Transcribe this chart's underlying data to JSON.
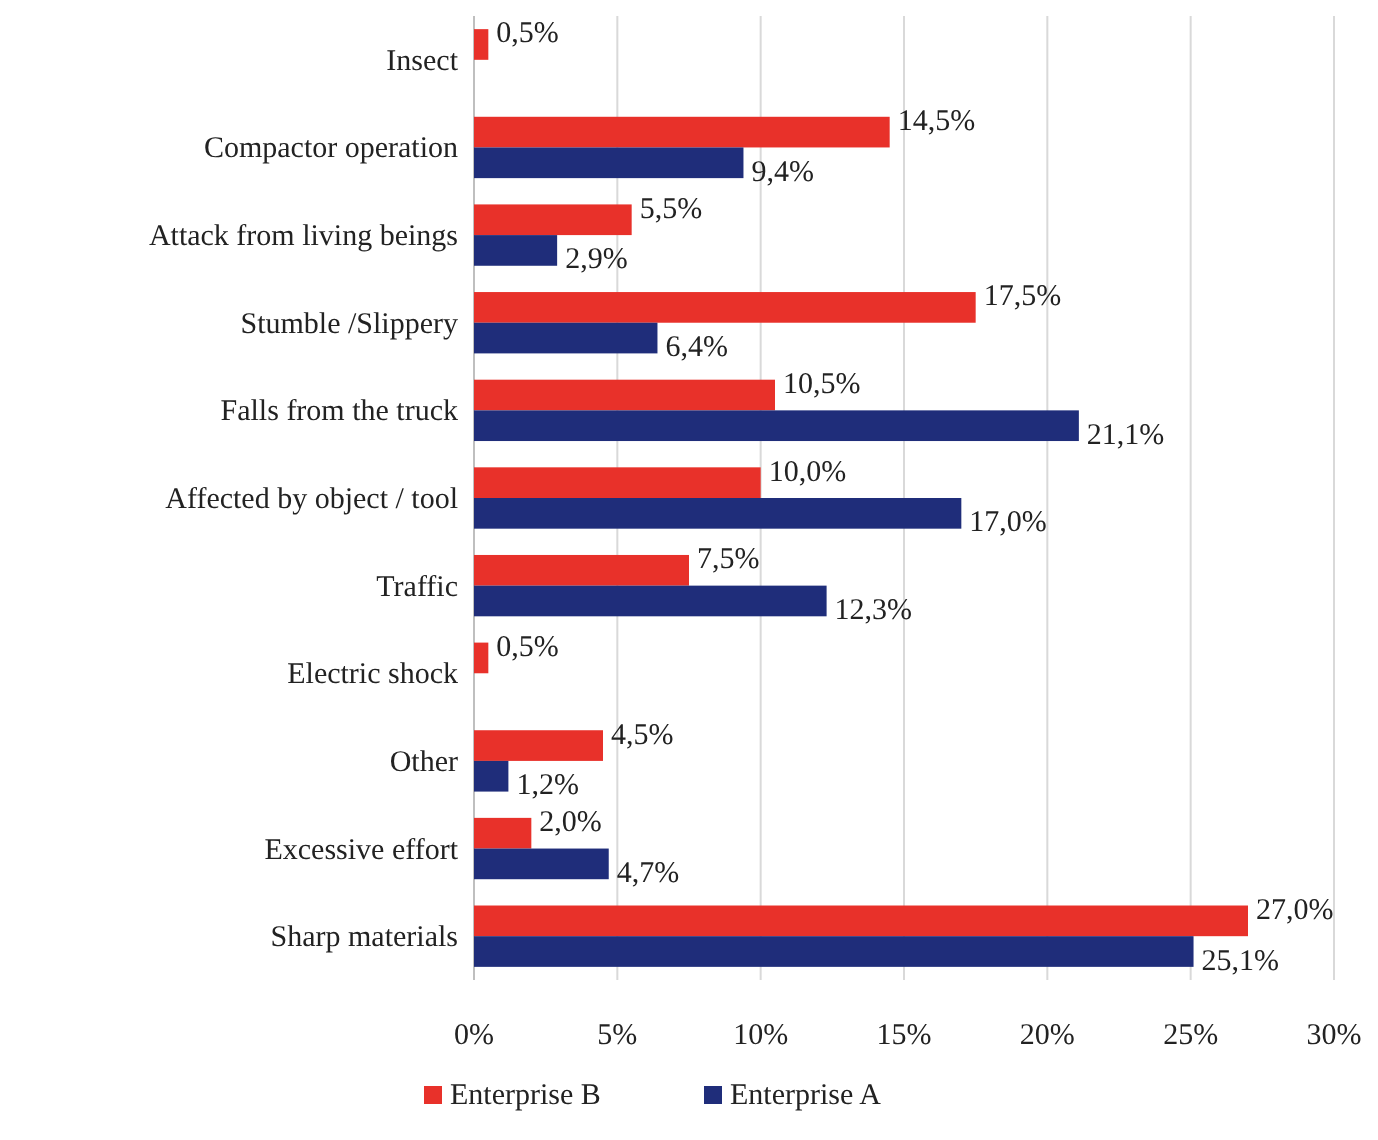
{
  "chart_data": {
    "type": "bar",
    "orientation": "horizontal",
    "categories": [
      "Insect",
      "Compactor operation",
      "Attack from living beings",
      "Stumble /Slippery",
      "Falls from the truck",
      "Affected by object / tool",
      "Traffic",
      "Electric shock",
      "Other",
      "Excessive effort",
      "Sharp materials"
    ],
    "series": [
      {
        "name": "Enterprise B",
        "color": "#e8312a",
        "values": [
          0.5,
          14.5,
          5.5,
          17.5,
          10.5,
          10.0,
          7.5,
          0.5,
          4.5,
          2.0,
          27.0
        ],
        "value_labels": [
          "0,5%",
          "14,5%",
          "5,5%",
          "17,5%",
          "10,5%",
          "10,0%",
          "7,5%",
          "0,5%",
          "4,5%",
          "2,0%",
          "27,0%"
        ]
      },
      {
        "name": "Enterprise A",
        "color": "#1f2d7a",
        "values": [
          null,
          9.4,
          2.9,
          6.4,
          21.1,
          17.0,
          12.3,
          null,
          1.2,
          4.7,
          25.1
        ],
        "value_labels": [
          null,
          "9,4%",
          "2,9%",
          "6,4%",
          "21,1%",
          "17,0%",
          "12,3%",
          null,
          "1,2%",
          "4,7%",
          "25,1%"
        ]
      }
    ],
    "xlim": [
      0,
      30
    ],
    "xticks": [
      {
        "value": 0,
        "label": "0%"
      },
      {
        "value": 5,
        "label": "5%"
      },
      {
        "value": 10,
        "label": "10%"
      },
      {
        "value": 15,
        "label": "15%"
      },
      {
        "value": 20,
        "label": "20%"
      },
      {
        "value": 25,
        "label": "25%"
      },
      {
        "value": 30,
        "label": "30%"
      }
    ],
    "grid": "x",
    "legend": "bottom"
  }
}
